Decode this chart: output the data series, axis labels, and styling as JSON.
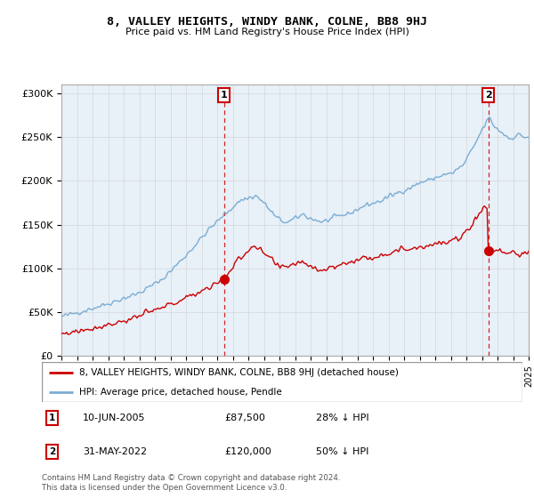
{
  "title": "8, VALLEY HEIGHTS, WINDY BANK, COLNE, BB8 9HJ",
  "subtitle": "Price paid vs. HM Land Registry's House Price Index (HPI)",
  "legend_line1": "8, VALLEY HEIGHTS, WINDY BANK, COLNE, BB8 9HJ (detached house)",
  "legend_line2": "HPI: Average price, detached house, Pendle",
  "sale1_date": "10-JUN-2005",
  "sale1_price": "£87,500",
  "sale1_hpi": "28% ↓ HPI",
  "sale2_date": "31-MAY-2022",
  "sale2_price": "£120,000",
  "sale2_hpi": "50% ↓ HPI",
  "footnote": "Contains HM Land Registry data © Crown copyright and database right 2024.\nThis data is licensed under the Open Government Licence v3.0.",
  "hpi_color": "#7aadd4",
  "sale_color": "#cc0000",
  "vline_color": "#cc0000",
  "bg_fill": "#e8f0f8",
  "ylim": [
    0,
    310000
  ],
  "yticks": [
    0,
    50000,
    100000,
    150000,
    200000,
    250000,
    300000
  ],
  "ytick_labels": [
    "£0",
    "£50K",
    "£100K",
    "£150K",
    "£200K",
    "£250K",
    "£300K"
  ],
  "x_start_year": 1995,
  "x_end_year": 2025,
  "sale1_year": 2005.44,
  "sale2_year": 2022.41,
  "sale1_price_val": 87500,
  "sale2_price_val": 120000,
  "background_color": "#ffffff",
  "grid_color": "#cccccc"
}
